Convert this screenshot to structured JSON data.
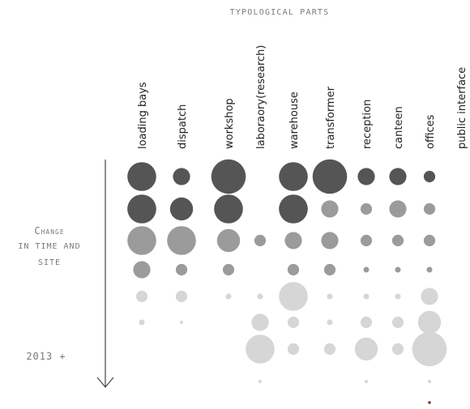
{
  "header": {
    "title": "TYPOLOGICAL PARTS"
  },
  "side": {
    "change_lines": [
      "Change",
      "in time and",
      "site"
    ],
    "year": "2013 +"
  },
  "palette": {
    "dark": "#555555",
    "mid": "#9b9b9b",
    "light": "#d6d6d6",
    "accent": "#7a3a2a"
  },
  "columns": [
    "loading bays",
    "dispatch",
    "workshop",
    "laboraory(research)",
    "warehouse",
    "transformer",
    "reception",
    "canteen",
    "offices",
    "public interface"
  ],
  "bubbles": [
    {
      "col": 0,
      "row": 0,
      "size": 5,
      "tone": "dark"
    },
    {
      "col": 1,
      "row": 0,
      "size": 3,
      "tone": "dark"
    },
    {
      "col": 2,
      "row": 0,
      "size": 6,
      "tone": "dark"
    },
    {
      "col": 4,
      "row": 0,
      "size": 5,
      "tone": "dark"
    },
    {
      "col": 5,
      "row": 0,
      "size": 6,
      "tone": "dark"
    },
    {
      "col": 6,
      "row": 0,
      "size": 3,
      "tone": "dark"
    },
    {
      "col": 7,
      "row": 0,
      "size": 3,
      "tone": "dark"
    },
    {
      "col": 8,
      "row": 0,
      "size": 2,
      "tone": "dark"
    },
    {
      "col": 0,
      "row": 1,
      "size": 5,
      "tone": "dark"
    },
    {
      "col": 1,
      "row": 1,
      "size": 4,
      "tone": "dark"
    },
    {
      "col": 2,
      "row": 1,
      "size": 5,
      "tone": "dark"
    },
    {
      "col": 4,
      "row": 1,
      "size": 5,
      "tone": "dark"
    },
    {
      "col": 5,
      "row": 1,
      "size": 3,
      "tone": "mid"
    },
    {
      "col": 6,
      "row": 1,
      "size": 2,
      "tone": "mid"
    },
    {
      "col": 7,
      "row": 1,
      "size": 3,
      "tone": "mid"
    },
    {
      "col": 8,
      "row": 1,
      "size": 2,
      "tone": "mid"
    },
    {
      "col": 0,
      "row": 2,
      "size": 5,
      "tone": "mid"
    },
    {
      "col": 1,
      "row": 2,
      "size": 5,
      "tone": "mid"
    },
    {
      "col": 2,
      "row": 2,
      "size": 4,
      "tone": "mid"
    },
    {
      "col": 3,
      "row": 2,
      "size": 2,
      "tone": "mid"
    },
    {
      "col": 4,
      "row": 2,
      "size": 3,
      "tone": "mid"
    },
    {
      "col": 5,
      "row": 2,
      "size": 3,
      "tone": "mid"
    },
    {
      "col": 6,
      "row": 2,
      "size": 2,
      "tone": "mid"
    },
    {
      "col": 7,
      "row": 2,
      "size": 2,
      "tone": "mid"
    },
    {
      "col": 8,
      "row": 2,
      "size": 2,
      "tone": "mid"
    },
    {
      "col": 0,
      "row": 3,
      "size": 3,
      "tone": "mid"
    },
    {
      "col": 1,
      "row": 3,
      "size": 2,
      "tone": "mid"
    },
    {
      "col": 2,
      "row": 3,
      "size": 2,
      "tone": "mid"
    },
    {
      "col": 4,
      "row": 3,
      "size": 2,
      "tone": "mid"
    },
    {
      "col": 5,
      "row": 3,
      "size": 2,
      "tone": "mid"
    },
    {
      "col": 6,
      "row": 3,
      "size": 1,
      "tone": "mid"
    },
    {
      "col": 7,
      "row": 3,
      "size": 1,
      "tone": "mid"
    },
    {
      "col": 8,
      "row": 3,
      "size": 1,
      "tone": "mid"
    },
    {
      "col": 0,
      "row": 4,
      "size": 2,
      "tone": "light"
    },
    {
      "col": 1,
      "row": 4,
      "size": 2,
      "tone": "light"
    },
    {
      "col": 2,
      "row": 4,
      "size": 1,
      "tone": "light"
    },
    {
      "col": 3,
      "row": 4,
      "size": 1,
      "tone": "light"
    },
    {
      "col": 4,
      "row": 4,
      "size": 5,
      "tone": "light"
    },
    {
      "col": 5,
      "row": 4,
      "size": 1,
      "tone": "light"
    },
    {
      "col": 6,
      "row": 4,
      "size": 1,
      "tone": "light"
    },
    {
      "col": 7,
      "row": 4,
      "size": 1,
      "tone": "light"
    },
    {
      "col": 8,
      "row": 4,
      "size": 3,
      "tone": "light"
    },
    {
      "col": 0,
      "row": 5,
      "size": 1,
      "tone": "light"
    },
    {
      "col": 1,
      "row": 5,
      "size": 0.6,
      "tone": "light"
    },
    {
      "col": 3,
      "row": 5,
      "size": 3,
      "tone": "light"
    },
    {
      "col": 4,
      "row": 5,
      "size": 2,
      "tone": "light"
    },
    {
      "col": 5,
      "row": 5,
      "size": 1,
      "tone": "light"
    },
    {
      "col": 6,
      "row": 5,
      "size": 2,
      "tone": "light"
    },
    {
      "col": 7,
      "row": 5,
      "size": 2,
      "tone": "light"
    },
    {
      "col": 8,
      "row": 5,
      "size": 4,
      "tone": "light"
    },
    {
      "col": 3,
      "row": 6,
      "size": 5,
      "tone": "light"
    },
    {
      "col": 4,
      "row": 6,
      "size": 2,
      "tone": "light"
    },
    {
      "col": 5,
      "row": 6,
      "size": 2,
      "tone": "light"
    },
    {
      "col": 6,
      "row": 6,
      "size": 4,
      "tone": "light"
    },
    {
      "col": 7,
      "row": 6,
      "size": 2,
      "tone": "light"
    },
    {
      "col": 8,
      "row": 6,
      "size": 6,
      "tone": "light"
    },
    {
      "col": 3,
      "row": 7,
      "size": 0.6,
      "tone": "light"
    },
    {
      "col": 6,
      "row": 7,
      "size": 0.6,
      "tone": "light"
    },
    {
      "col": 8,
      "row": 7,
      "size": 0.6,
      "tone": "light"
    },
    {
      "col": 8,
      "row": 8,
      "size": 0.5,
      "tone": "accent"
    }
  ]
}
